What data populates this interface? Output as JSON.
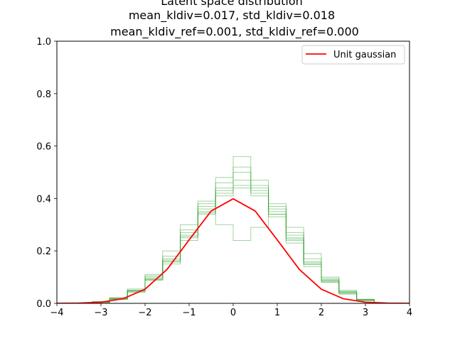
{
  "chart_data": {
    "type": "line",
    "title_lines": [
      "Latent space distribution",
      "mean_kldiv=0.017, std_kldiv=0.018",
      "mean_kldiv_ref=0.001, std_kldiv_ref=0.000"
    ],
    "xlabel": "",
    "ylabel": "",
    "xlim": [
      -4,
      4
    ],
    "ylim": [
      0,
      1.0
    ],
    "x_ticks": [
      -4,
      -3,
      -2,
      -1,
      0,
      1,
      2,
      3,
      4
    ],
    "x_tick_labels": [
      "−4",
      "−3",
      "−2",
      "−1",
      "0",
      "1",
      "2",
      "3",
      "4"
    ],
    "y_ticks": [
      0.0,
      0.2,
      0.4,
      0.6,
      0.8,
      1.0
    ],
    "y_tick_labels": [
      "0.0",
      "0.2",
      "0.4",
      "0.6",
      "0.8",
      "1.0"
    ],
    "grid": false,
    "legend_position": "top-right",
    "legend": [
      {
        "label": "Unit gaussian",
        "color": "#ff0000"
      }
    ],
    "reference_curve": {
      "name": "Unit gaussian",
      "color": "#ff0000",
      "x": [
        -4.0,
        -3.5,
        -3.0,
        -2.5,
        -2.0,
        -1.5,
        -1.0,
        -0.5,
        0.0,
        0.5,
        1.0,
        1.5,
        2.0,
        2.5,
        3.0,
        3.5,
        4.0
      ],
      "y": [
        0.0001,
        0.0009,
        0.0044,
        0.0175,
        0.054,
        0.1295,
        0.242,
        0.3521,
        0.3989,
        0.3521,
        0.242,
        0.1295,
        0.054,
        0.0175,
        0.0044,
        0.0009,
        0.0001
      ]
    },
    "histogram_series_color": "#2ca02c",
    "histogram_series": [
      {
        "bin_edges": [
          -3.2,
          -2.8,
          -2.4,
          -2.0,
          -1.6,
          -1.2,
          -0.8,
          -0.4,
          0.0,
          0.4,
          0.8,
          1.2,
          1.6,
          2.0,
          2.4,
          2.8,
          3.2
        ],
        "values": [
          0.004,
          0.018,
          0.045,
          0.092,
          0.16,
          0.25,
          0.34,
          0.42,
          0.45,
          0.41,
          0.33,
          0.24,
          0.15,
          0.085,
          0.04,
          0.014
        ]
      },
      {
        "bin_edges": [
          -3.2,
          -2.8,
          -2.4,
          -2.0,
          -1.6,
          -1.2,
          -0.8,
          -0.4,
          0.0,
          0.4,
          0.8,
          1.2,
          1.6,
          2.0,
          2.4,
          2.8,
          3.2
        ],
        "values": [
          0.006,
          0.02,
          0.05,
          0.1,
          0.17,
          0.27,
          0.37,
          0.48,
          0.56,
          0.47,
          0.36,
          0.26,
          0.16,
          0.09,
          0.045,
          0.012
        ]
      },
      {
        "bin_edges": [
          -3.2,
          -2.8,
          -2.4,
          -2.0,
          -1.6,
          -1.2,
          -0.8,
          -0.4,
          0.0,
          0.4,
          0.8,
          1.2,
          1.6,
          2.0,
          2.4,
          2.8,
          3.2
        ],
        "values": [
          0.005,
          0.015,
          0.05,
          0.11,
          0.2,
          0.3,
          0.38,
          0.3,
          0.24,
          0.29,
          0.37,
          0.29,
          0.19,
          0.1,
          0.045,
          0.015
        ]
      },
      {
        "bin_edges": [
          -3.2,
          -2.8,
          -2.4,
          -2.0,
          -1.6,
          -1.2,
          -0.8,
          -0.4,
          0.0,
          0.4,
          0.8,
          1.2,
          1.6,
          2.0,
          2.4,
          2.8,
          3.2
        ],
        "values": [
          0.003,
          0.016,
          0.042,
          0.088,
          0.15,
          0.24,
          0.35,
          0.44,
          0.5,
          0.43,
          0.34,
          0.23,
          0.14,
          0.08,
          0.035,
          0.01
        ]
      },
      {
        "bin_edges": [
          -3.2,
          -2.8,
          -2.4,
          -2.0,
          -1.6,
          -1.2,
          -0.8,
          -0.4,
          0.0,
          0.4,
          0.8,
          1.2,
          1.6,
          2.0,
          2.4,
          2.8,
          3.2
        ],
        "values": [
          0.007,
          0.022,
          0.055,
          0.105,
          0.18,
          0.28,
          0.39,
          0.46,
          0.47,
          0.45,
          0.38,
          0.27,
          0.17,
          0.095,
          0.05,
          0.016
        ]
      },
      {
        "bin_edges": [
          -3.2,
          -2.8,
          -2.4,
          -2.0,
          -1.6,
          -1.2,
          -0.8,
          -0.4,
          0.0,
          0.4,
          0.8,
          1.2,
          1.6,
          2.0,
          2.4,
          2.8,
          3.2
        ],
        "values": [
          0.004,
          0.019,
          0.048,
          0.095,
          0.165,
          0.26,
          0.36,
          0.43,
          0.52,
          0.44,
          0.35,
          0.25,
          0.155,
          0.088,
          0.042,
          0.013
        ]
      },
      {
        "bin_edges": [
          -3.2,
          -2.8,
          -2.4,
          -2.0,
          -1.6,
          -1.2,
          -0.8,
          -0.4,
          0.0,
          0.4,
          0.8,
          1.2,
          1.6,
          2.0,
          2.4,
          2.8,
          3.2
        ],
        "values": [
          0.005,
          0.017,
          0.046,
          0.09,
          0.158,
          0.255,
          0.345,
          0.41,
          0.44,
          0.42,
          0.34,
          0.245,
          0.148,
          0.082,
          0.038,
          0.012
        ]
      }
    ]
  }
}
